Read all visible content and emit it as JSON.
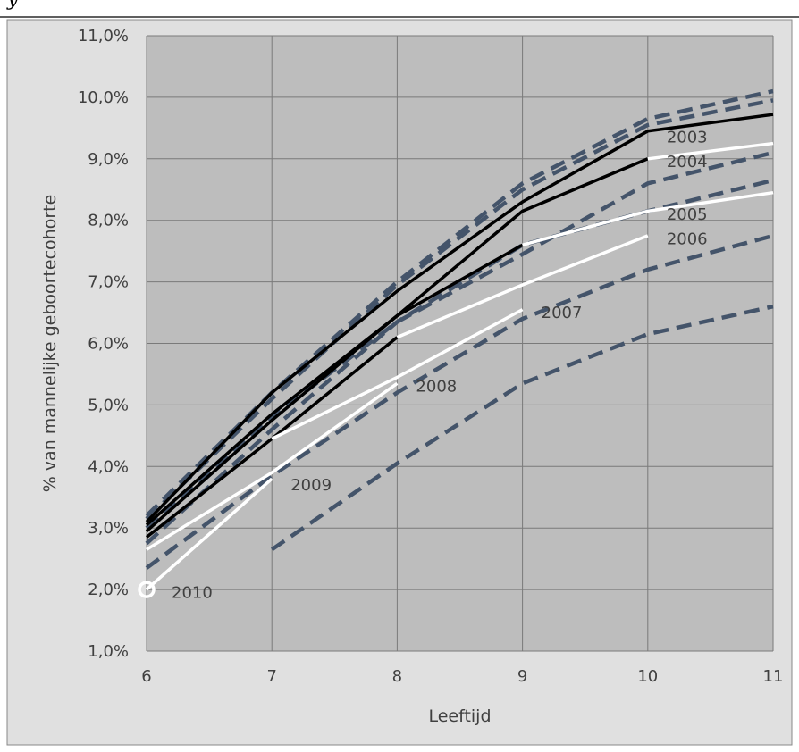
{
  "chart_data": {
    "type": "line",
    "xlabel": "Leeftijd",
    "ylabel": "% van mannelijke geboortecohorte",
    "xlim": [
      6,
      11
    ],
    "ylim": [
      1.0,
      11.0
    ],
    "x_ticks": [
      "6",
      "7",
      "8",
      "9",
      "10",
      "11"
    ],
    "y_ticks": [
      "1,0%",
      "2,0%",
      "3,0%",
      "4,0%",
      "5,0%",
      "6,0%",
      "7,0%",
      "8,0%",
      "9,0%",
      "10,0%",
      "11,0%"
    ],
    "grid": true,
    "legend": "none",
    "colors": {
      "actual_black": "#000000",
      "actual_white": "#ffffff",
      "projection": "#44546a"
    },
    "series": [
      {
        "name": "2003",
        "style": "solid",
        "color": "#000000",
        "x": [
          6,
          7,
          8,
          9,
          10,
          11
        ],
        "values": [
          3.1,
          5.2,
          6.85,
          8.3,
          9.45,
          9.72
        ]
      },
      {
        "name": "2004",
        "style": "solid",
        "color": "#000000",
        "x": [
          6,
          7,
          8,
          9,
          10
        ],
        "values": [
          3.05,
          4.85,
          6.45,
          8.15,
          9.0
        ]
      },
      {
        "name": "2004",
        "style": "solid",
        "color": "#ffffff",
        "x": [
          10,
          11
        ],
        "values": [
          9.0,
          9.25
        ]
      },
      {
        "name": "2005",
        "style": "solid",
        "color": "#000000",
        "x": [
          6,
          7,
          8,
          9
        ],
        "values": [
          2.95,
          4.75,
          6.45,
          7.6
        ]
      },
      {
        "name": "2005",
        "style": "solid",
        "color": "#ffffff",
        "x": [
          9,
          10,
          11
        ],
        "values": [
          7.6,
          8.15,
          8.45
        ]
      },
      {
        "name": "2006",
        "style": "solid",
        "color": "#000000",
        "x": [
          6,
          7,
          8
        ],
        "values": [
          2.85,
          4.45,
          6.1
        ]
      },
      {
        "name": "2006",
        "style": "solid",
        "color": "#ffffff",
        "x": [
          8,
          9,
          10
        ],
        "values": [
          6.1,
          6.95,
          7.75
        ]
      },
      {
        "name": "2007",
        "style": "solid",
        "color": "#ffffff",
        "x": [
          7,
          8,
          9
        ],
        "values": [
          4.45,
          5.45,
          6.55
        ]
      },
      {
        "name": "2008",
        "style": "solid",
        "color": "#ffffff",
        "x": [
          6,
          7,
          8
        ],
        "values": [
          2.65,
          3.9,
          5.35
        ]
      },
      {
        "name": "2010",
        "style": "solid",
        "color": "#ffffff",
        "x": [
          6,
          7
        ],
        "values": [
          2.0,
          3.8
        ]
      },
      {
        "style": "dashed",
        "color": "#44546a",
        "x": [
          6,
          7,
          8,
          9,
          10,
          11
        ],
        "values": [
          3.2,
          5.2,
          7.0,
          8.6,
          9.65,
          10.1
        ]
      },
      {
        "style": "dashed",
        "color": "#44546a",
        "x": [
          6,
          7,
          8,
          9,
          10,
          11
        ],
        "values": [
          3.15,
          5.1,
          6.95,
          8.5,
          9.55,
          9.95
        ]
      },
      {
        "style": "dashed",
        "color": "#44546a",
        "x": [
          6,
          7,
          8,
          9,
          10,
          11
        ],
        "values": [
          3.0,
          4.8,
          6.35,
          7.45,
          8.6,
          9.1
        ]
      },
      {
        "style": "dashed",
        "color": "#44546a",
        "x": [
          6,
          7,
          8,
          9,
          10,
          11
        ],
        "values": [
          2.75,
          4.6,
          6.35,
          7.6,
          8.15,
          8.65
        ]
      },
      {
        "style": "dashed",
        "color": "#44546a",
        "x": [
          6,
          7,
          8,
          9,
          10,
          11
        ],
        "values": [
          2.35,
          3.85,
          5.2,
          6.4,
          7.2,
          7.75
        ]
      },
      {
        "style": "dashed",
        "color": "#44546a",
        "x": [
          7,
          8,
          9,
          10,
          11
        ],
        "values": [
          2.65,
          4.05,
          5.35,
          6.15,
          6.6
        ]
      }
    ],
    "annotations": [
      {
        "text": "2003",
        "x": 10.15,
        "y": 9.35
      },
      {
        "text": "2004",
        "x": 10.15,
        "y": 8.95
      },
      {
        "text": "2005",
        "x": 10.15,
        "y": 8.1
      },
      {
        "text": "2006",
        "x": 10.15,
        "y": 7.7
      },
      {
        "text": "2007",
        "x": 9.15,
        "y": 6.5
      },
      {
        "text": "2008",
        "x": 8.15,
        "y": 5.3
      },
      {
        "text": "2009",
        "x": 7.15,
        "y": 3.7
      },
      {
        "text": "2010",
        "x": 6.2,
        "y": 1.95
      }
    ],
    "markers": [
      {
        "x": 6,
        "y": 2.0,
        "shape": "open-circle",
        "color": "#ffffff"
      }
    ]
  }
}
